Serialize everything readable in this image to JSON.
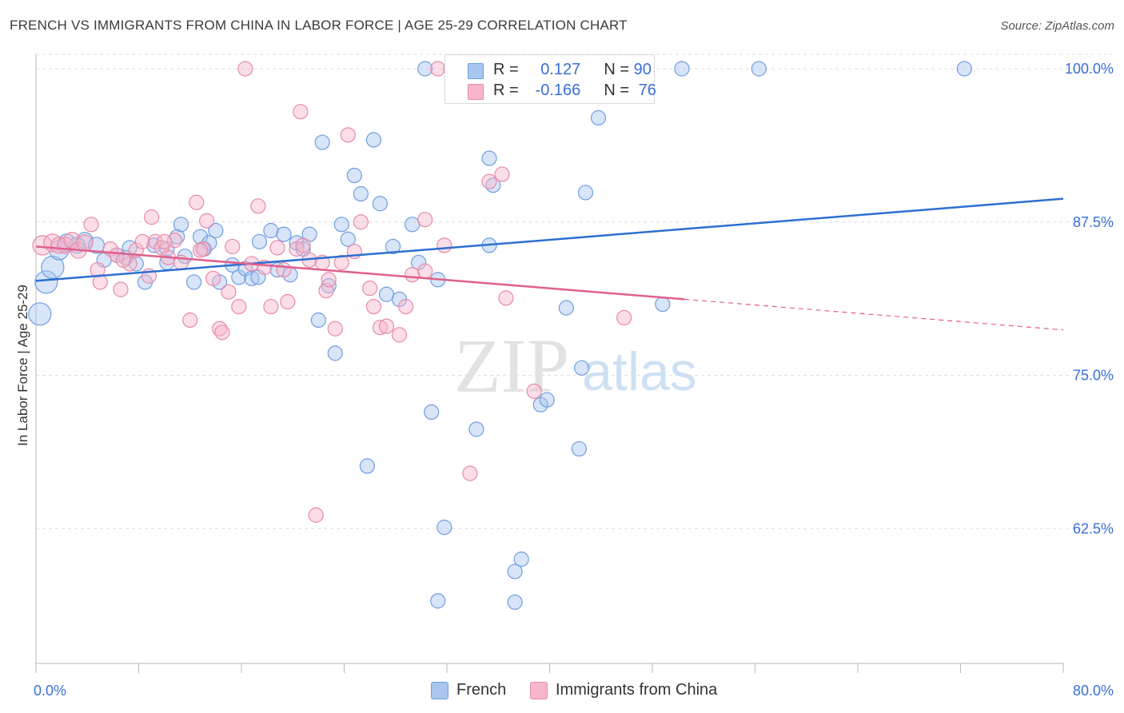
{
  "title": "FRENCH VS IMMIGRANTS FROM CHINA IN LABOR FORCE | AGE 25-29 CORRELATION CHART",
  "source": "Source: ZipAtlas.com",
  "watermark": {
    "zip": "ZIP",
    "atlas": "atlas"
  },
  "legend_box": {
    "rows": [
      {
        "r_label": "R =",
        "r_value": "0.127",
        "n_label": "N =",
        "n_value": "90"
      },
      {
        "r_label": "R =",
        "r_value": "-0.166",
        "n_label": "N =",
        "n_value": "76"
      }
    ]
  },
  "bottom_legend": {
    "french": "French",
    "china": "Immigrants from China"
  },
  "colors": {
    "french_fill": "#a8c6f0",
    "french_stroke": "#6f9de0",
    "french_line": "#2e6fd0",
    "china_fill": "#f6b6cb",
    "china_stroke": "#e88aa8",
    "china_line": "#e0608c",
    "axis_text": "#3a6fd8",
    "grid": "#dddddd"
  },
  "chart_data": {
    "type": "scatter",
    "title": "FRENCH VS IMMIGRANTS FROM CHINA IN LABOR FORCE | AGE 25-29 CORRELATION CHART",
    "xlabel": "",
    "ylabel": "In Labor Force | Age 25-29",
    "xlim": [
      0,
      80
    ],
    "ylim": [
      51.5,
      101.5
    ],
    "x_tick_labels": [
      "0.0%",
      "80.0%"
    ],
    "y_ticks": [
      {
        "value": 100,
        "label": "100.0%"
      },
      {
        "value": 87.5,
        "label": "87.5%"
      },
      {
        "value": 75,
        "label": "75.0%"
      },
      {
        "value": 62.5,
        "label": "62.5%"
      }
    ],
    "series": [
      {
        "name": "French",
        "r": 0.127,
        "n": 90,
        "trend": {
          "x0": 0,
          "y0": 82.7,
          "x1": 80,
          "y1": 89.4
        },
        "points": [
          [
            0.3,
            80.0,
            14
          ],
          [
            0.8,
            82.6,
            14
          ],
          [
            1.3,
            83.8,
            14
          ],
          [
            1.8,
            85.2,
            12
          ],
          [
            2.4,
            85.8,
            11
          ],
          [
            3.2,
            85.6,
            10
          ],
          [
            3.8,
            86.0,
            10
          ],
          [
            4.7,
            85.6,
            10
          ],
          [
            5.3,
            84.4,
            9
          ],
          [
            6.3,
            84.8,
            9
          ],
          [
            7.0,
            84.6,
            9
          ],
          [
            7.8,
            84.1,
            9
          ],
          [
            7.3,
            85.4,
            9
          ],
          [
            8.5,
            82.6,
            9
          ],
          [
            9.2,
            85.6,
            9
          ],
          [
            10.2,
            84.2,
            9
          ],
          [
            10.2,
            85.3,
            9
          ],
          [
            11.0,
            86.3,
            9
          ],
          [
            11.3,
            87.3,
            9
          ],
          [
            11.6,
            84.7,
            9
          ],
          [
            12.3,
            82.6,
            9
          ],
          [
            12.8,
            86.3,
            9
          ],
          [
            13.1,
            85.3,
            9
          ],
          [
            13.5,
            85.8,
            9
          ],
          [
            14.0,
            86.8,
            9
          ],
          [
            14.3,
            82.6,
            9
          ],
          [
            15.3,
            84.0,
            9
          ],
          [
            15.8,
            83.0,
            9
          ],
          [
            16.3,
            83.7,
            9
          ],
          [
            16.8,
            82.9,
            9
          ],
          [
            17.3,
            83.0,
            9
          ],
          [
            17.4,
            85.9,
            9
          ],
          [
            18.3,
            86.8,
            9
          ],
          [
            18.8,
            83.6,
            9
          ],
          [
            19.3,
            86.5,
            9
          ],
          [
            19.8,
            83.2,
            9
          ],
          [
            20.3,
            85.8,
            9
          ],
          [
            20.8,
            85.3,
            9
          ],
          [
            21.3,
            86.5,
            9
          ],
          [
            22.0,
            79.5,
            9
          ],
          [
            22.8,
            82.3,
            9
          ],
          [
            23.3,
            76.8,
            9
          ],
          [
            23.8,
            87.3,
            9
          ],
          [
            24.3,
            86.1,
            9
          ],
          [
            22.3,
            94.0,
            9
          ],
          [
            24.8,
            91.3,
            9
          ],
          [
            25.3,
            89.8,
            9
          ],
          [
            26.3,
            94.2,
            9
          ],
          [
            26.8,
            89.0,
            9
          ],
          [
            27.3,
            81.6,
            9
          ],
          [
            27.8,
            85.5,
            9
          ],
          [
            28.3,
            81.2,
            9
          ],
          [
            29.3,
            87.3,
            9
          ],
          [
            29.8,
            84.2,
            9
          ],
          [
            30.3,
            100.0,
            9
          ],
          [
            30.8,
            72.0,
            9
          ],
          [
            31.3,
            82.8,
            9
          ],
          [
            31.8,
            62.6,
            9
          ],
          [
            31.3,
            56.6,
            9
          ],
          [
            33.3,
            100.0,
            9
          ],
          [
            34.3,
            70.6,
            9
          ],
          [
            34.3,
            100.0,
            9
          ],
          [
            35.3,
            92.7,
            9
          ],
          [
            35.6,
            90.5,
            9
          ],
          [
            35.3,
            85.6,
            9
          ],
          [
            36.3,
            100.0,
            9
          ],
          [
            37.3,
            100.0,
            9
          ],
          [
            38.3,
            100.0,
            9
          ],
          [
            37.3,
            59.0,
            9
          ],
          [
            37.3,
            56.5,
            9
          ],
          [
            37.8,
            60.0,
            9
          ],
          [
            38.3,
            100.0,
            9
          ],
          [
            38.8,
            100.0,
            9
          ],
          [
            39.3,
            72.6,
            9
          ],
          [
            39.8,
            73.0,
            9
          ],
          [
            41.3,
            100.0,
            9
          ],
          [
            41.3,
            80.5,
            9
          ],
          [
            42.3,
            69.0,
            9
          ],
          [
            42.5,
            75.6,
            9
          ],
          [
            42.8,
            89.9,
            9
          ],
          [
            43.3,
            100.0,
            9
          ],
          [
            44.3,
            100.0,
            9
          ],
          [
            43.8,
            96.0,
            9
          ],
          [
            44.3,
            100.0,
            9
          ],
          [
            46.3,
            100.0,
            9
          ],
          [
            48.8,
            80.8,
            9
          ],
          [
            50.3,
            100.0,
            9
          ],
          [
            56.3,
            100.0,
            9
          ],
          [
            72.3,
            100.0,
            9
          ],
          [
            25.8,
            67.6,
            9
          ]
        ]
      },
      {
        "name": "Immigrants from China",
        "r": -0.166,
        "n": 76,
        "trend": {
          "x0": 0,
          "y0": 85.5,
          "x1": 50.5,
          "y1": 81.2,
          "dash_to_x": 80,
          "dash_to_y": 78.7
        },
        "points": [
          [
            0.5,
            85.6,
            12
          ],
          [
            1.3,
            85.8,
            11
          ],
          [
            1.8,
            85.6,
            10
          ],
          [
            2.3,
            85.6,
            10
          ],
          [
            2.8,
            86.0,
            10
          ],
          [
            3.3,
            85.2,
            10
          ],
          [
            3.8,
            85.8,
            10
          ],
          [
            4.3,
            87.3,
            9
          ],
          [
            4.8,
            83.6,
            9
          ],
          [
            5.0,
            82.6,
            9
          ],
          [
            5.8,
            85.3,
            9
          ],
          [
            6.3,
            84.8,
            9
          ],
          [
            6.6,
            82.0,
            9
          ],
          [
            7.3,
            84.1,
            9
          ],
          [
            7.8,
            85.2,
            9
          ],
          [
            8.3,
            85.9,
            9
          ],
          [
            8.8,
            83.1,
            9
          ],
          [
            9.0,
            87.9,
            9
          ],
          [
            9.3,
            85.9,
            9
          ],
          [
            9.8,
            85.4,
            9
          ],
          [
            10.3,
            84.6,
            9
          ],
          [
            10.8,
            86.0,
            9
          ],
          [
            11.3,
            84.2,
            9
          ],
          [
            12.0,
            79.5,
            9
          ],
          [
            12.5,
            89.1,
            9
          ],
          [
            13.0,
            85.3,
            9
          ],
          [
            13.3,
            87.6,
            9
          ],
          [
            13.8,
            82.9,
            9
          ],
          [
            14.3,
            78.8,
            9
          ],
          [
            14.5,
            78.5,
            9
          ],
          [
            15.0,
            81.8,
            9
          ],
          [
            15.3,
            85.5,
            9
          ],
          [
            15.8,
            80.6,
            9
          ],
          [
            16.3,
            100.0,
            9
          ],
          [
            16.8,
            84.1,
            9
          ],
          [
            17.3,
            88.8,
            9
          ],
          [
            17.8,
            83.8,
            9
          ],
          [
            18.3,
            80.6,
            9
          ],
          [
            18.8,
            85.4,
            9
          ],
          [
            19.3,
            83.6,
            9
          ],
          [
            19.6,
            81.0,
            9
          ],
          [
            20.3,
            85.3,
            9
          ],
          [
            20.6,
            96.5,
            9
          ],
          [
            20.8,
            85.6,
            9
          ],
          [
            21.3,
            84.4,
            9
          ],
          [
            21.8,
            63.6,
            9
          ],
          [
            22.3,
            84.2,
            9
          ],
          [
            22.6,
            81.9,
            9
          ],
          [
            22.8,
            82.8,
            9
          ],
          [
            23.3,
            78.8,
            9
          ],
          [
            23.8,
            84.2,
            9
          ],
          [
            24.3,
            94.6,
            9
          ],
          [
            24.8,
            85.1,
            9
          ],
          [
            25.3,
            87.5,
            9
          ],
          [
            26.0,
            82.1,
            9
          ],
          [
            26.3,
            80.6,
            9
          ],
          [
            26.8,
            78.9,
            9
          ],
          [
            27.3,
            79.0,
            9
          ],
          [
            28.3,
            78.3,
            9
          ],
          [
            28.8,
            80.6,
            9
          ],
          [
            29.3,
            83.2,
            9
          ],
          [
            30.3,
            83.5,
            9
          ],
          [
            30.3,
            87.7,
            9
          ],
          [
            31.3,
            100.0,
            9
          ],
          [
            32.3,
            100.0,
            9
          ],
          [
            33.8,
            67.0,
            9
          ],
          [
            35.3,
            90.8,
            9
          ],
          [
            36.3,
            91.4,
            9
          ],
          [
            36.6,
            81.3,
            9
          ],
          [
            38.8,
            73.7,
            9
          ],
          [
            43.3,
            100.0,
            9
          ],
          [
            45.8,
            79.7,
            9
          ],
          [
            31.8,
            85.6,
            9
          ],
          [
            12.8,
            85.2,
            9
          ],
          [
            10.0,
            85.9,
            9
          ],
          [
            6.8,
            84.4,
            9
          ]
        ]
      }
    ]
  }
}
